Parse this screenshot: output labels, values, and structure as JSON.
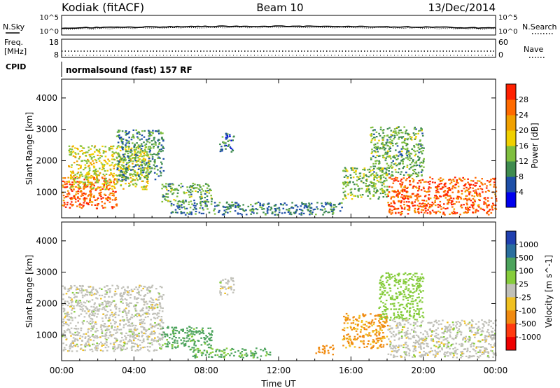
{
  "header": {
    "station": "Kodiak (fitACF)",
    "beam": "Beam 10",
    "date": "13/Dec/2014"
  },
  "noise_panel": {
    "left_label": "N.Sky",
    "right_label": "N.Search",
    "left_ticks": [
      "10^5",
      "10^0"
    ],
    "right_ticks": [
      "10^5",
      "10^0"
    ]
  },
  "freq_panel": {
    "left_label_line1": "Freq.",
    "left_label_line2": "[MHz]",
    "right_label": "Nave",
    "left_ticks": [
      "18",
      "8"
    ],
    "right_ticks": [
      "60",
      "0"
    ]
  },
  "cpid": {
    "label": "CPID",
    "text": "normalsound (fast) 157 RF"
  },
  "colors": {
    "power_scale": [
      "#0000ee",
      "#1e4fa8",
      "#3f8c4f",
      "#7fbf3f",
      "#f0d000",
      "#f0a000",
      "#ff6a00",
      "#ff2000"
    ],
    "velocity_scale": [
      "#2040b0",
      "#2a6e9e",
      "#4ca35c",
      "#86cc3c",
      "#c0c0b8",
      "#f0c020",
      "#f08a10",
      "#ff3a10",
      "#ee0000"
    ]
  },
  "chart_data": [
    {
      "type": "heatmap",
      "title": "",
      "xlabel": "",
      "ylabel": "Slant Range [km]",
      "xlim": [
        "00:00",
        "24:00"
      ],
      "ylim": [
        180,
        4600
      ],
      "x_ticks": [
        "00:00",
        "04:00",
        "08:00",
        "12:00",
        "16:00",
        "20:00",
        "00:00"
      ],
      "y_ticks": [
        1000,
        2000,
        3000,
        4000
      ],
      "colorbar": {
        "label": "Power [dB]",
        "range": [
          0,
          32
        ],
        "ticks": [
          4,
          8,
          12,
          16,
          20,
          24,
          28
        ]
      },
      "regions": [
        {
          "t_start": 0.0,
          "t_end": 3.0,
          "range_low": 500,
          "range_high": 1500,
          "value": 27
        },
        {
          "t_start": 0.3,
          "t_end": 4.8,
          "range_low": 1100,
          "range_high": 2500,
          "value": 17
        },
        {
          "t_start": 3.0,
          "t_end": 5.6,
          "range_low": 1400,
          "range_high": 3000,
          "value": 10
        },
        {
          "t_start": 5.5,
          "t_end": 8.3,
          "range_low": 700,
          "range_high": 1300,
          "value": 12
        },
        {
          "t_start": 8.7,
          "t_end": 9.5,
          "range_low": 2300,
          "range_high": 2900,
          "value": 8
        },
        {
          "t_start": 6.0,
          "t_end": 15.5,
          "range_low": 300,
          "range_high": 700,
          "value": 9
        },
        {
          "t_start": 15.5,
          "t_end": 18.0,
          "range_low": 800,
          "range_high": 1800,
          "value": 14
        },
        {
          "t_start": 17.0,
          "t_end": 20.0,
          "range_low": 1500,
          "range_high": 3100,
          "value": 12
        },
        {
          "t_start": 18.0,
          "t_end": 24.0,
          "range_low": 300,
          "range_high": 1500,
          "value": 27
        }
      ]
    },
    {
      "type": "heatmap",
      "title": "",
      "xlabel": "Time UT",
      "ylabel": "Slant Range [km]",
      "xlim": [
        "00:00",
        "24:00"
      ],
      "ylim": [
        180,
        4600
      ],
      "x_ticks": [
        "00:00",
        "04:00",
        "08:00",
        "12:00",
        "16:00",
        "20:00",
        "00:00"
      ],
      "y_ticks": [
        1000,
        2000,
        3000,
        4000
      ],
      "colorbar": {
        "label": "Velocity [m s^-1]",
        "tick_labels": [
          "1000",
          "500",
          "100",
          "25",
          "-25",
          "-100",
          "-500",
          "-1000"
        ]
      },
      "regions": [
        {
          "t_start": 0.0,
          "t_end": 5.6,
          "range_low": 500,
          "range_high": 2600,
          "value": 0
        },
        {
          "t_start": 5.5,
          "t_end": 8.3,
          "range_low": 600,
          "range_high": 1300,
          "value": 150
        },
        {
          "t_start": 7.0,
          "t_end": 11.5,
          "range_low": 300,
          "range_high": 600,
          "value": 110
        },
        {
          "t_start": 8.7,
          "t_end": 9.5,
          "range_low": 2300,
          "range_high": 2900,
          "value": 0
        },
        {
          "t_start": 14.0,
          "t_end": 15.0,
          "range_low": 400,
          "range_high": 700,
          "value": -300
        },
        {
          "t_start": 15.5,
          "t_end": 18.0,
          "range_low": 600,
          "range_high": 1700,
          "value": -120
        },
        {
          "t_start": 17.5,
          "t_end": 20.0,
          "range_low": 1500,
          "range_high": 3000,
          "value": 60
        },
        {
          "t_start": 18.0,
          "t_end": 24.0,
          "range_low": 300,
          "range_high": 1500,
          "value": 0
        }
      ]
    }
  ]
}
